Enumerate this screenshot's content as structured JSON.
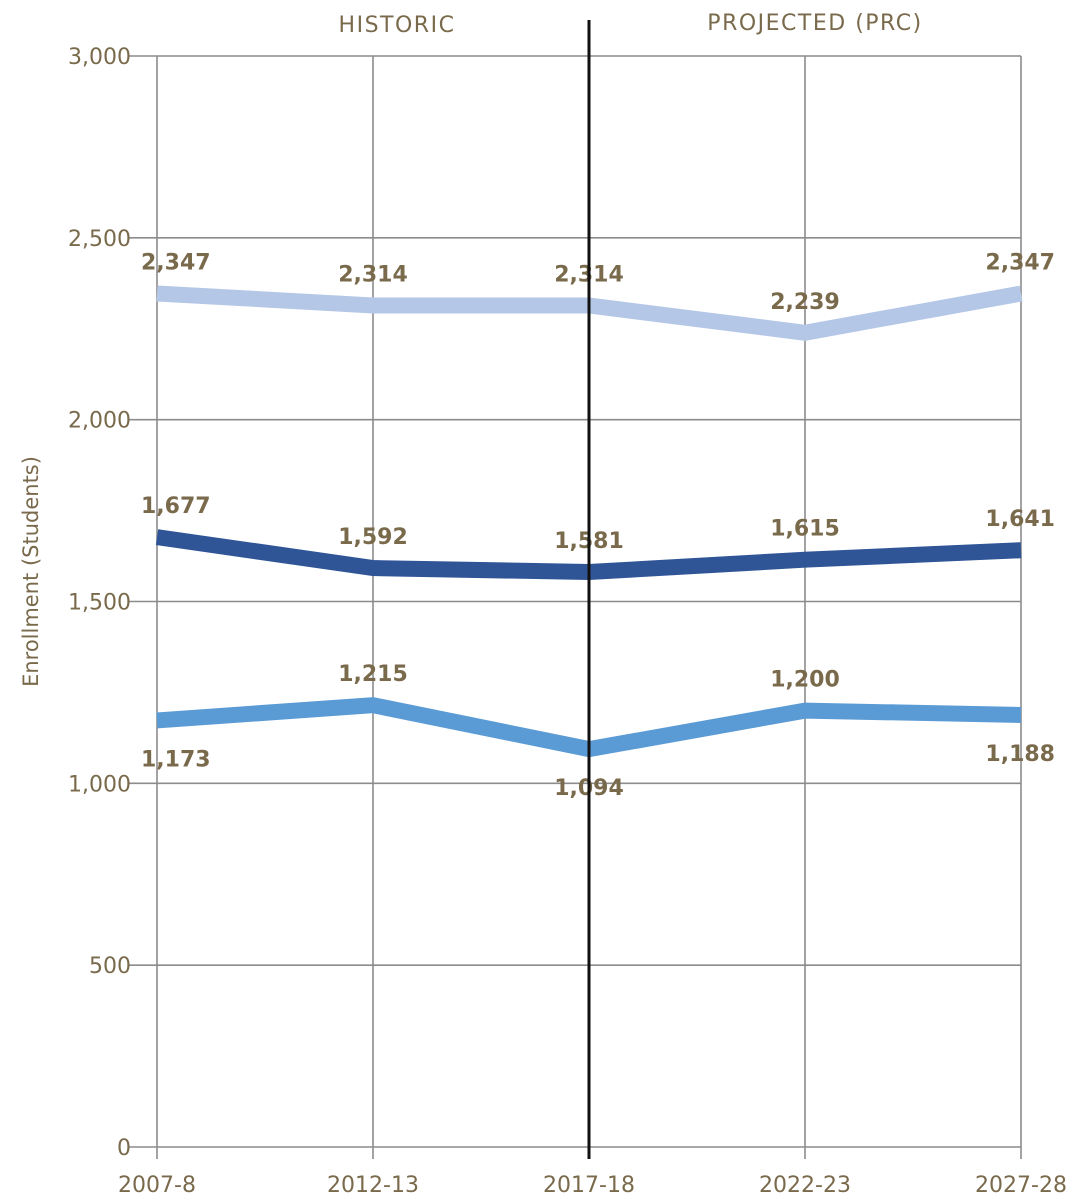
{
  "chart_data": {
    "type": "line",
    "categories": [
      "2007-8",
      "2012-13",
      "2017-18",
      "2022-23",
      "2027-28"
    ],
    "ylabel": "Enrollment  (Students)",
    "ylim": [
      0,
      3000
    ],
    "yticks": [
      0,
      500,
      1000,
      1500,
      2000,
      2500,
      3000
    ],
    "ytick_labels": [
      "0",
      "500",
      "1,000",
      "1,500",
      "2,000",
      "2,500",
      "3,000"
    ],
    "grid": true,
    "sections": [
      {
        "label": "HISTORIC"
      },
      {
        "label": "PROJECTED (PRC)"
      }
    ],
    "divider_after_category": "2017-18",
    "series": [
      {
        "color": "#b4c7e7",
        "values": [
          2347,
          2314,
          2314,
          2239,
          2347
        ],
        "labels": [
          "2,347",
          "2,314",
          "2,314",
          "2,239",
          "2,347"
        ],
        "label_positions": [
          "above",
          "above",
          "above",
          "above",
          "above"
        ]
      },
      {
        "color": "#2f5597",
        "values": [
          1677,
          1592,
          1581,
          1615,
          1641
        ],
        "labels": [
          "1,677",
          "1,592",
          "1,581",
          "1,615",
          "1,641"
        ],
        "label_positions": [
          "above",
          "above",
          "above",
          "above",
          "above"
        ]
      },
      {
        "color": "#5b9bd5",
        "values": [
          1173,
          1215,
          1094,
          1200,
          1188
        ],
        "labels": [
          "1,173",
          "1,215",
          "1,094",
          "1,200",
          "1,188"
        ],
        "label_positions": [
          "below",
          "above",
          "below",
          "above",
          "below"
        ]
      }
    ]
  }
}
